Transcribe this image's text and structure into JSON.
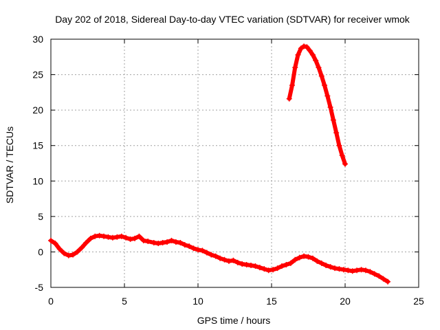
{
  "chart_data": {
    "type": "scatter",
    "title": "Day 202 of 2018, Sidereal Day-to-day VTEC variation (SDTVAR) for receiver wmok",
    "xlabel": "GPS time / hours",
    "ylabel": "SDTVAR / TECUs",
    "xlim": [
      0,
      25
    ],
    "ylim": [
      -5,
      30
    ],
    "xticks": [
      0,
      5,
      10,
      15,
      20,
      25
    ],
    "yticks": [
      -5,
      0,
      5,
      10,
      15,
      20,
      25,
      30
    ],
    "grid": true,
    "marker": "+",
    "series": [
      {
        "name": "SDTVAR track 1",
        "color": "#ff0000",
        "x": [
          0,
          0.3,
          0.6,
          0.9,
          1.2,
          1.5,
          1.8,
          2.1,
          2.4,
          2.7,
          3.0,
          3.3,
          3.6,
          3.9,
          4.2,
          4.5,
          4.8,
          5.1,
          5.4,
          5.7,
          6.0,
          6.3,
          6.6,
          7.0,
          7.3,
          7.6,
          7.9,
          8.2,
          8.5,
          8.8,
          9.1,
          9.4,
          9.7,
          10.0,
          10.3,
          10.6,
          10.9,
          11.2,
          11.5,
          11.8,
          12.1,
          12.4,
          12.7,
          13.0,
          13.3,
          13.6,
          13.9,
          14.2,
          14.5,
          14.8,
          15.1,
          15.4,
          15.7,
          16.0,
          16.3,
          16.6,
          16.9,
          17.2,
          17.5,
          17.8,
          18.1,
          18.4,
          18.7,
          19.0,
          19.3,
          19.6,
          19.9,
          20.2,
          20.5,
          20.8,
          21.1,
          21.4,
          21.7,
          22.0,
          22.3,
          22.6,
          22.9
        ],
        "y": [
          1.6,
          1.2,
          0.4,
          -0.2,
          -0.5,
          -0.4,
          0.0,
          0.6,
          1.3,
          1.9,
          2.2,
          2.3,
          2.2,
          2.1,
          2.0,
          2.1,
          2.2,
          2.0,
          1.8,
          1.9,
          2.2,
          1.6,
          1.5,
          1.3,
          1.2,
          1.3,
          1.4,
          1.6,
          1.4,
          1.3,
          1.0,
          0.8,
          0.5,
          0.3,
          0.2,
          -0.1,
          -0.4,
          -0.6,
          -0.9,
          -1.1,
          -1.3,
          -1.2,
          -1.5,
          -1.7,
          -1.8,
          -1.9,
          -2.0,
          -2.2,
          -2.4,
          -2.6,
          -2.5,
          -2.3,
          -2.0,
          -1.8,
          -1.6,
          -1.1,
          -0.8,
          -0.6,
          -0.7,
          -0.9,
          -1.3,
          -1.6,
          -1.9,
          -2.1,
          -2.3,
          -2.4,
          -2.5,
          -2.6,
          -2.7,
          -2.6,
          -2.5,
          -2.6,
          -2.8,
          -3.1,
          -3.4,
          -3.8,
          -4.2
        ]
      },
      {
        "name": "SDTVAR track 2",
        "color": "#ff0000",
        "x": [
          16.2,
          16.4,
          16.6,
          16.8,
          17.0,
          17.2,
          17.4,
          17.6,
          17.8,
          18.0,
          18.2,
          18.4,
          18.6,
          18.8,
          19.0,
          19.2,
          19.4,
          19.6,
          19.8,
          20.0
        ],
        "y": [
          21.6,
          23.5,
          26.0,
          27.8,
          28.7,
          29.0,
          28.9,
          28.4,
          27.8,
          27.0,
          26.0,
          24.8,
          23.5,
          22.0,
          20.4,
          18.6,
          16.8,
          15.0,
          13.6,
          12.4
        ]
      }
    ]
  }
}
